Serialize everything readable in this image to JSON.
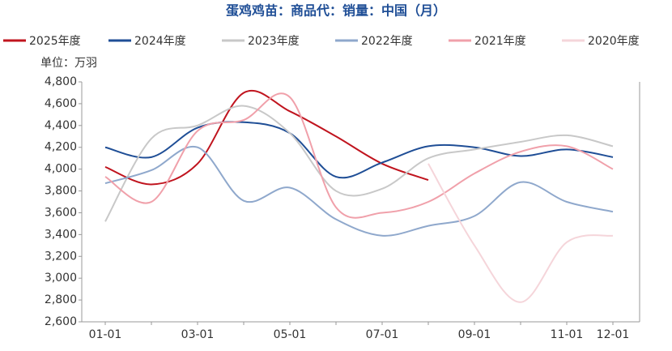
{
  "chart_data": {
    "type": "line",
    "title": "蛋鸡鸡苗：商品代：销量：中国（月）",
    "unit_label": "单位：万羽",
    "categories": [
      "01-01",
      null,
      "03-01",
      null,
      "05-01",
      null,
      "07-01",
      null,
      "09-01",
      null,
      "11-01",
      "12-01"
    ],
    "ylim": [
      2600,
      4800
    ],
    "yticks": [
      {
        "value": 2600,
        "label": "2,600"
      },
      {
        "value": 2800,
        "label": "2,800"
      },
      {
        "value": 3000,
        "label": "3,000"
      },
      {
        "value": 3200,
        "label": "3,200"
      },
      {
        "value": 3400,
        "label": "3,400"
      },
      {
        "value": 3600,
        "label": "3,600"
      },
      {
        "value": 3800,
        "label": "3,800"
      },
      {
        "value": 4000,
        "label": "4,000"
      },
      {
        "value": 4200,
        "label": "4,200"
      },
      {
        "value": 4400,
        "label": "4,400"
      },
      {
        "value": 4600,
        "label": "4,600"
      },
      {
        "value": 4800,
        "label": "4,800"
      }
    ],
    "series": [
      {
        "name": "2025年度",
        "color": "#c0141e",
        "values": [
          4020,
          3860,
          4050,
          4700,
          4530,
          4300,
          4050,
          3900,
          null,
          null,
          null,
          null
        ]
      },
      {
        "name": "2024年度",
        "color": "#1f4e96",
        "values": [
          4200,
          4110,
          4380,
          4430,
          4330,
          3930,
          4060,
          4210,
          4200,
          4120,
          4180,
          4110
        ]
      },
      {
        "name": "2023年度",
        "color": "#c8c8c8",
        "values": [
          3520,
          4280,
          4400,
          4580,
          4330,
          3800,
          3820,
          4100,
          4180,
          4250,
          4310,
          4210
        ]
      },
      {
        "name": "2022年度",
        "color": "#8fa8cc",
        "values": [
          3870,
          3990,
          4200,
          3710,
          3830,
          3540,
          3390,
          3480,
          3570,
          3880,
          3700,
          3610
        ]
      },
      {
        "name": "2021年度",
        "color": "#f0a0aa",
        "values": [
          3930,
          3700,
          4350,
          4450,
          4660,
          3650,
          3600,
          3700,
          3960,
          4160,
          4210,
          4000
        ]
      },
      {
        "name": "2020年度",
        "color": "#f5d5da",
        "values": [
          null,
          null,
          null,
          null,
          null,
          null,
          null,
          4050,
          3300,
          2780,
          3330,
          3390
        ]
      }
    ]
  }
}
